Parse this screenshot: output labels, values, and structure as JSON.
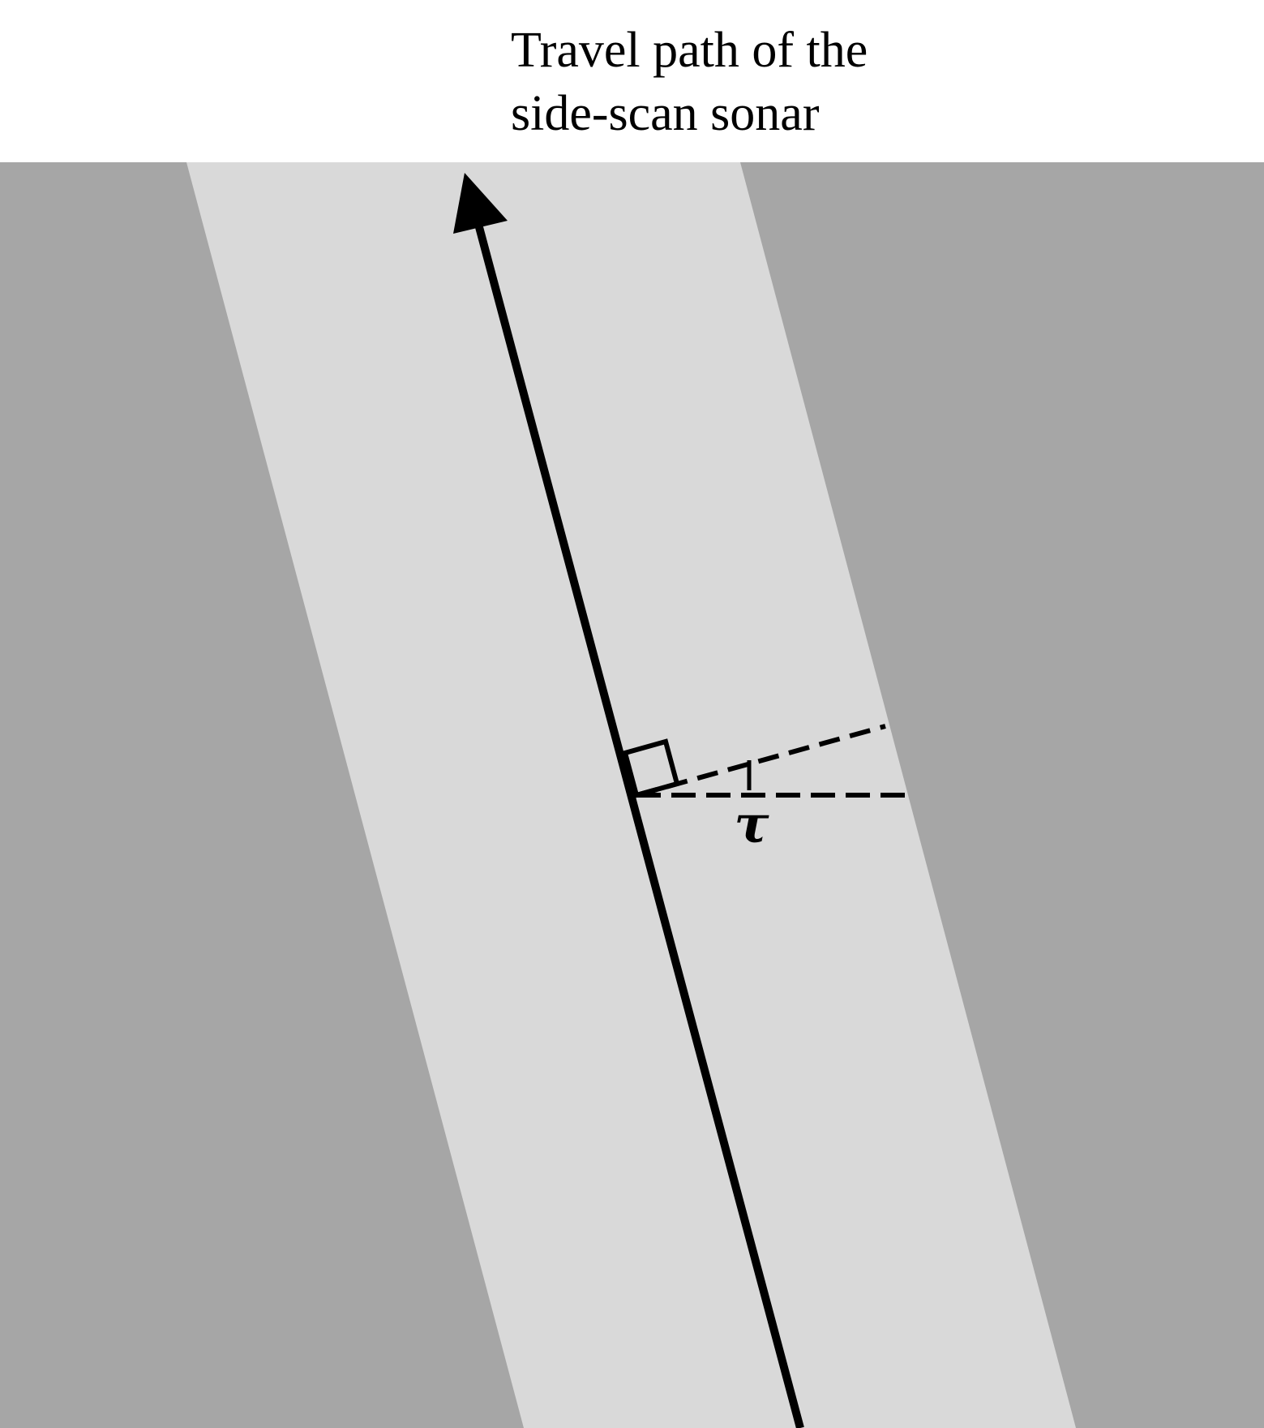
{
  "caption": {
    "lines": [
      "Travel path of the",
      "side-scan sonar"
    ]
  },
  "angle_label": "τ",
  "colors": {
    "background": "#ffffff",
    "outer_seabed": "#a6a6a6",
    "scan_swath": "#d9d9d9",
    "ink": "#000000"
  }
}
